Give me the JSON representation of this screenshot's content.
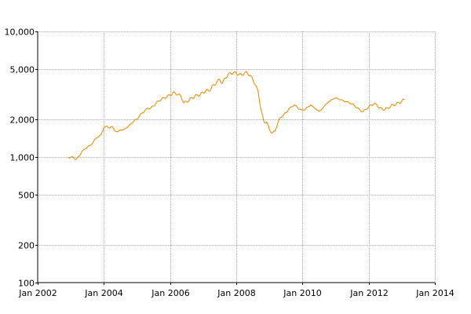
{
  "chart_data": {
    "type": "line",
    "title": "",
    "xlabel": "",
    "ylabel": "",
    "y_scale": "log",
    "ylim": [
      100,
      10000
    ],
    "xlim": [
      "2002-01-01",
      "2014-01-01"
    ],
    "y_ticks": [
      {
        "value": 100,
        "label": "100"
      },
      {
        "value": 200,
        "label": "200"
      },
      {
        "value": 500,
        "label": "500"
      },
      {
        "value": 1000,
        "label": "1,000"
      },
      {
        "value": 2000,
        "label": "2,000"
      },
      {
        "value": 5000,
        "label": "5,000"
      },
      {
        "value": 10000,
        "label": "10,000"
      }
    ],
    "x_ticks": [
      {
        "value": "2002-01-01",
        "label": "Jan 2002"
      },
      {
        "value": "2004-01-01",
        "label": "Jan 2004"
      },
      {
        "value": "2006-01-01",
        "label": "Jan 2006"
      },
      {
        "value": "2008-01-01",
        "label": "Jan 2008"
      },
      {
        "value": "2010-01-01",
        "label": "Jan 2010"
      },
      {
        "value": "2012-01-01",
        "label": "Jan 2012"
      },
      {
        "value": "2014-01-01",
        "label": "Jan 2014"
      }
    ],
    "grid": true,
    "legend": "none",
    "series": [
      {
        "color": "#e8900c",
        "points": [
          [
            "2002-12-01",
            990
          ],
          [
            "2003-01-01",
            1000
          ],
          [
            "2003-02-01",
            985
          ],
          [
            "2003-03-01",
            955
          ],
          [
            "2003-04-01",
            1010
          ],
          [
            "2003-05-01",
            1100
          ],
          [
            "2003-06-01",
            1150
          ],
          [
            "2003-07-01",
            1200
          ],
          [
            "2003-08-01",
            1230
          ],
          [
            "2003-09-01",
            1300
          ],
          [
            "2003-10-01",
            1400
          ],
          [
            "2003-11-01",
            1450
          ],
          [
            "2003-12-01",
            1500
          ],
          [
            "2004-01-01",
            1720
          ],
          [
            "2004-02-01",
            1760
          ],
          [
            "2004-03-01",
            1700
          ],
          [
            "2004-04-01",
            1750
          ],
          [
            "2004-05-01",
            1620
          ],
          [
            "2004-06-01",
            1580
          ],
          [
            "2004-07-01",
            1650
          ],
          [
            "2004-08-01",
            1640
          ],
          [
            "2004-09-01",
            1700
          ],
          [
            "2004-10-01",
            1760
          ],
          [
            "2004-11-01",
            1850
          ],
          [
            "2004-12-01",
            1950
          ],
          [
            "2005-01-01",
            2000
          ],
          [
            "2005-02-01",
            2150
          ],
          [
            "2005-03-01",
            2250
          ],
          [
            "2005-04-01",
            2350
          ],
          [
            "2005-05-01",
            2450
          ],
          [
            "2005-06-01",
            2450
          ],
          [
            "2005-07-01",
            2550
          ],
          [
            "2005-08-01",
            2700
          ],
          [
            "2005-09-01",
            2800
          ],
          [
            "2005-10-01",
            2900
          ],
          [
            "2005-11-01",
            2950
          ],
          [
            "2005-12-01",
            3050
          ],
          [
            "2006-01-01",
            3100
          ],
          [
            "2006-02-01",
            3250
          ],
          [
            "2006-03-01",
            3200
          ],
          [
            "2006-04-01",
            3150
          ],
          [
            "2006-05-01",
            3050
          ],
          [
            "2006-06-01",
            2700
          ],
          [
            "2006-07-01",
            2750
          ],
          [
            "2006-08-01",
            2850
          ],
          [
            "2006-09-01",
            2950
          ],
          [
            "2006-10-01",
            3050
          ],
          [
            "2006-11-01",
            3100
          ],
          [
            "2006-12-01",
            3150
          ],
          [
            "2007-01-01",
            3250
          ],
          [
            "2007-02-01",
            3400
          ],
          [
            "2007-03-01",
            3350
          ],
          [
            "2007-04-01",
            3550
          ],
          [
            "2007-05-01",
            3750
          ],
          [
            "2007-06-01",
            3950
          ],
          [
            "2007-07-01",
            4150
          ],
          [
            "2007-08-01",
            3850
          ],
          [
            "2007-09-01",
            4250
          ],
          [
            "2007-10-01",
            4500
          ],
          [
            "2007-11-01",
            4650
          ],
          [
            "2007-12-01",
            4700
          ],
          [
            "2008-01-01",
            4650
          ],
          [
            "2008-02-01",
            4550
          ],
          [
            "2008-03-01",
            4500
          ],
          [
            "2008-04-01",
            4650
          ],
          [
            "2008-05-01",
            4700
          ],
          [
            "2008-06-01",
            4450
          ],
          [
            "2008-07-01",
            4150
          ],
          [
            "2008-08-01",
            3750
          ],
          [
            "2008-09-01",
            3250
          ],
          [
            "2008-10-01",
            2350
          ],
          [
            "2008-11-01",
            1900
          ],
          [
            "2008-12-01",
            1900
          ],
          [
            "2009-01-01",
            1650
          ],
          [
            "2009-02-01",
            1550
          ],
          [
            "2009-03-01",
            1600
          ],
          [
            "2009-04-01",
            1850
          ],
          [
            "2009-05-01",
            2050
          ],
          [
            "2009-06-01",
            2150
          ],
          [
            "2009-07-01",
            2250
          ],
          [
            "2009-08-01",
            2400
          ],
          [
            "2009-09-01",
            2500
          ],
          [
            "2009-10-01",
            2600
          ],
          [
            "2009-11-01",
            2500
          ],
          [
            "2009-12-01",
            2400
          ],
          [
            "2010-01-01",
            2350
          ],
          [
            "2010-02-01",
            2400
          ],
          [
            "2010-03-01",
            2500
          ],
          [
            "2010-04-01",
            2600
          ],
          [
            "2010-05-01",
            2500
          ],
          [
            "2010-06-01",
            2400
          ],
          [
            "2010-07-01",
            2300
          ],
          [
            "2010-08-01",
            2400
          ],
          [
            "2010-09-01",
            2550
          ],
          [
            "2010-10-01",
            2700
          ],
          [
            "2010-11-01",
            2800
          ],
          [
            "2010-12-01",
            2900
          ],
          [
            "2011-01-01",
            2950
          ],
          [
            "2011-02-01",
            2900
          ],
          [
            "2011-03-01",
            2850
          ],
          [
            "2011-04-01",
            2800
          ],
          [
            "2011-05-01",
            2750
          ],
          [
            "2011-06-01",
            2700
          ],
          [
            "2011-07-01",
            2650
          ],
          [
            "2011-08-01",
            2550
          ],
          [
            "2011-09-01",
            2450
          ],
          [
            "2011-10-01",
            2350
          ],
          [
            "2011-11-01",
            2300
          ],
          [
            "2011-12-01",
            2400
          ],
          [
            "2012-01-01",
            2500
          ],
          [
            "2012-02-01",
            2600
          ],
          [
            "2012-03-01",
            2650
          ],
          [
            "2012-04-01",
            2600
          ],
          [
            "2012-05-01",
            2450
          ],
          [
            "2012-06-01",
            2400
          ],
          [
            "2012-07-01",
            2400
          ],
          [
            "2012-08-01",
            2450
          ],
          [
            "2012-09-01",
            2550
          ],
          [
            "2012-10-01",
            2600
          ],
          [
            "2012-11-01",
            2650
          ],
          [
            "2012-12-01",
            2700
          ],
          [
            "2013-01-01",
            2800
          ],
          [
            "2013-02-01",
            2850
          ]
        ]
      }
    ]
  }
}
